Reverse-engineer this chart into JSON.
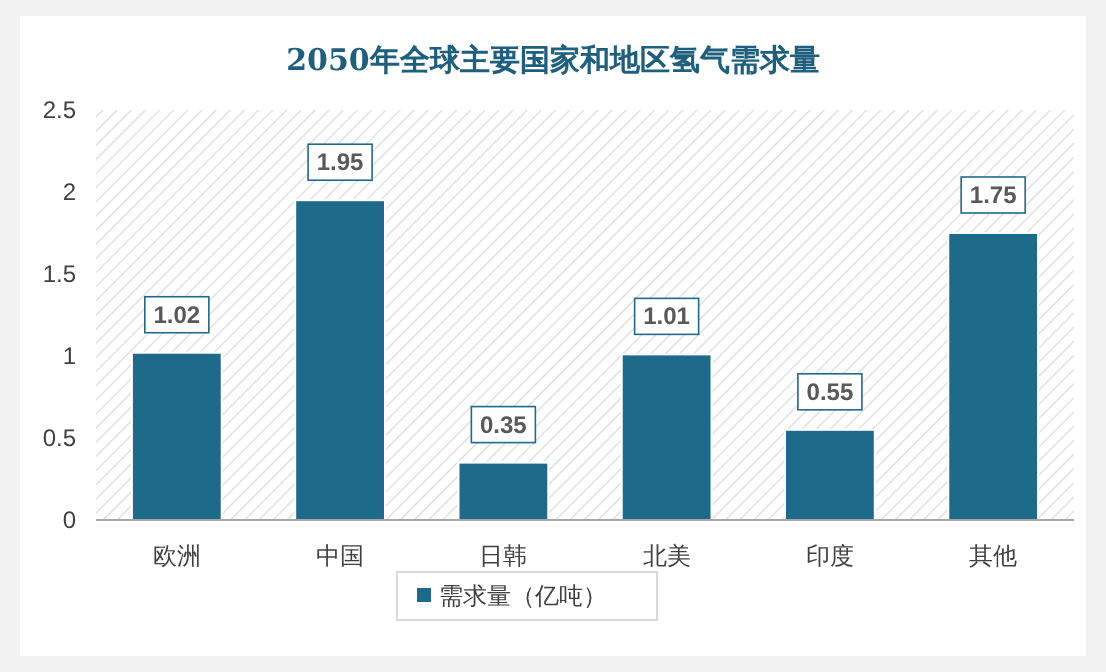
{
  "chart_data": {
    "type": "bar",
    "title": "2050年全球主要国家和地区氢气需求量",
    "categories": [
      "欧洲",
      "中国",
      "日韩",
      "北美",
      "印度",
      "其他"
    ],
    "series": [
      {
        "name": "需求量（亿吨）",
        "color": "#1e6a8b",
        "values": [
          1.02,
          1.95,
          0.35,
          1.01,
          0.55,
          1.75
        ]
      }
    ],
    "ylim": [
      0,
      2.5
    ],
    "yticks": [
      0,
      0.5,
      1,
      1.5,
      2,
      2.5
    ],
    "data_labels": true,
    "legend": "bottom",
    "grid": false
  }
}
